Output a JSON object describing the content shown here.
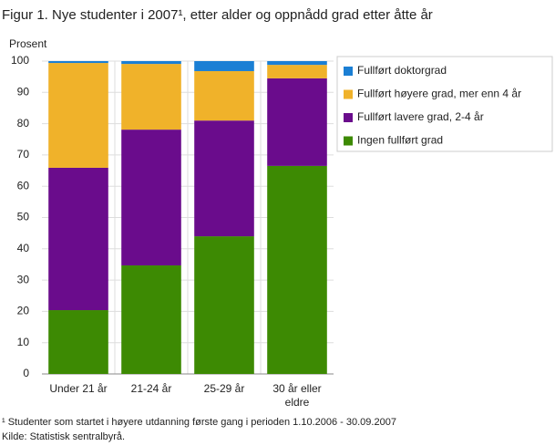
{
  "chart_data": {
    "type": "stacked-bar",
    "title": "Figur 1. Nye studenter i 2007¹, etter alder og oppnådd grad etter åtte år",
    "y_label": "Prosent",
    "categories": [
      "Under 21 år",
      "21-24 år",
      "25-29 år",
      "30 år eller eldre"
    ],
    "series": [
      {
        "name": "Ingen fullført grad",
        "color": "#3d8a03",
        "values": [
          20.4,
          34.7,
          44.0,
          66.5
        ]
      },
      {
        "name": "Fullført lavere grad, 2-4 år",
        "color": "#6a0c8c",
        "values": [
          45.5,
          43.4,
          37.0,
          28.0
        ]
      },
      {
        "name": "Fullført høyere grad, mer enn 4 år",
        "color": "#f0b22a",
        "values": [
          33.5,
          21.0,
          15.8,
          4.3
        ]
      },
      {
        "name": "Fullført doktorgrad",
        "color": "#1b7fd4",
        "values": [
          0.6,
          0.9,
          3.2,
          1.2
        ]
      }
    ],
    "ylim": [
      0,
      100
    ],
    "yticks": [
      0,
      10,
      20,
      30,
      40,
      50,
      60,
      70,
      80,
      90,
      100
    ],
    "grid": true,
    "legend": "right",
    "footnotes": [
      "¹ Studenter som startet i høyere utdanning første gang i perioden 1.10.2006 - 30.09.2007",
      "Kilde: Statistisk sentralbyrå."
    ]
  }
}
